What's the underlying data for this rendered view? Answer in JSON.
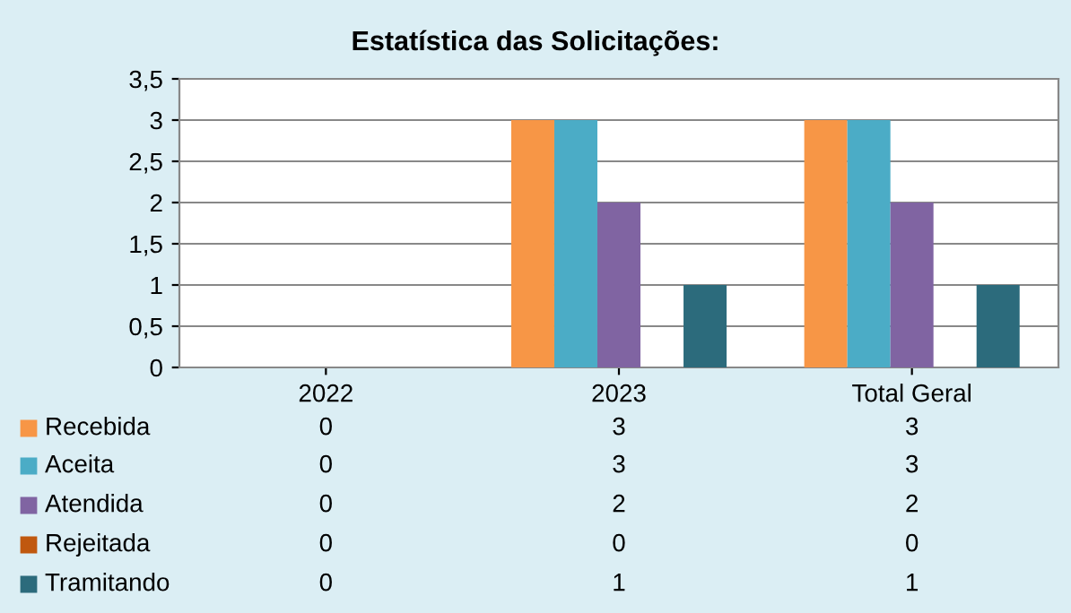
{
  "chart_data": {
    "type": "bar",
    "title": "Estatística das Solicitações:",
    "categories": [
      "2022",
      "2023",
      "Total Geral"
    ],
    "series": [
      {
        "name": "Recebida",
        "color": "#f79646",
        "values": [
          0,
          3,
          3
        ]
      },
      {
        "name": "Aceita",
        "color": "#4bacc6",
        "values": [
          0,
          3,
          3
        ]
      },
      {
        "name": "Atendida",
        "color": "#8064a2",
        "values": [
          0,
          2,
          2
        ]
      },
      {
        "name": "Rejeitada",
        "color": "#c0580f",
        "values": [
          0,
          0,
          0
        ]
      },
      {
        "name": "Tramitando",
        "color": "#2c6b7c",
        "values": [
          0,
          1,
          1
        ]
      }
    ],
    "ylim": [
      0,
      3.5
    ],
    "yticks": [
      0,
      {
        "value": 0.5,
        "label": "0,5"
      },
      1,
      {
        "value": 1.5,
        "label": "1,5"
      },
      2,
      {
        "value": 2.5,
        "label": "2,5"
      },
      3,
      {
        "value": 3.5,
        "label": "3,5"
      }
    ],
    "grid": "y",
    "legend": "bottom",
    "data_labels": true
  }
}
